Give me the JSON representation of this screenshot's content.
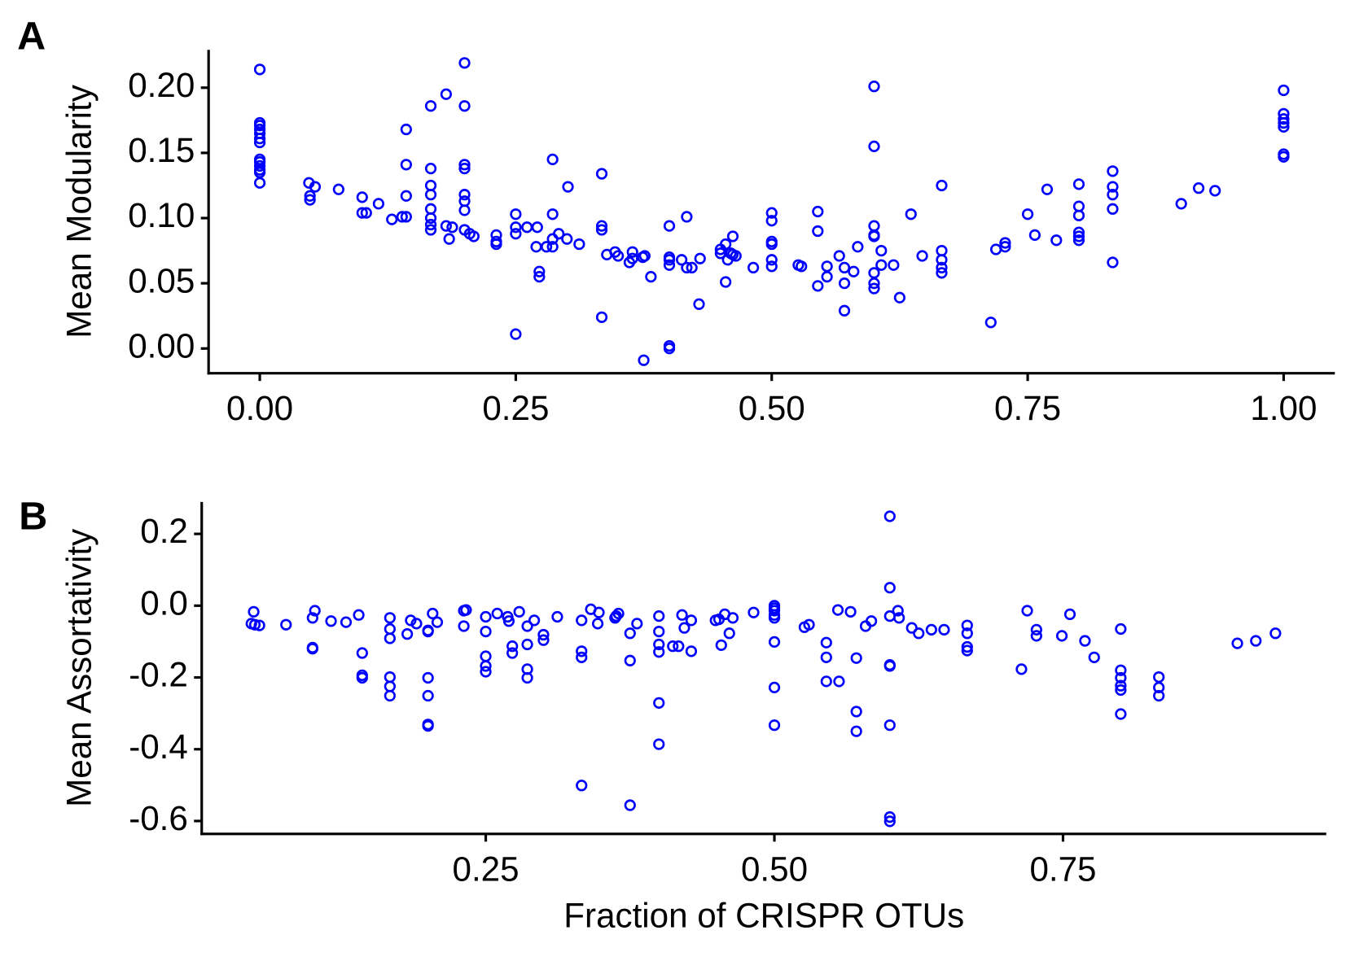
{
  "chart_data": [
    {
      "type": "scatter",
      "panel_label": "A",
      "y_label": "Mean Modularity",
      "xlim": [
        -0.05,
        1.05
      ],
      "ylim": [
        -0.019,
        0.229
      ],
      "xticks": [
        {
          "value": 0,
          "label": "0.00"
        },
        0.25,
        {
          "value": 0.5,
          "label": "0.50"
        },
        0.75,
        {
          "value": 1,
          "label": "1.00"
        }
      ],
      "yticks": [
        {
          "value": 0,
          "label": "0.00"
        },
        {
          "value": 0.05,
          "label": "0.05"
        },
        {
          "value": 0.1,
          "label": "0.10"
        },
        {
          "value": 0.15,
          "label": "0.15"
        },
        {
          "value": 0.2,
          "label": "0.20"
        }
      ],
      "series": [
        {
          "color": "#0000ff",
          "x": [
            0,
            0,
            0,
            0,
            0,
            0,
            0,
            0,
            0,
            0,
            0,
            0,
            0,
            0.048,
            0.049,
            0.049,
            0.054,
            0.077,
            0.1,
            0.1,
            0.104,
            0.116,
            0.129,
            0.139,
            0.143,
            0.143,
            0.143,
            0.143,
            0.167,
            0.167,
            0.167,
            0.167,
            0.167,
            0.167,
            0.167,
            0.167,
            0.182,
            0.182,
            0.185,
            0.188,
            0.2,
            0.2,
            0.2,
            0.2,
            0.2,
            0.2,
            0.2,
            0.2,
            0.205,
            0.209,
            0.231,
            0.231,
            0.231,
            0.25,
            0.25,
            0.25,
            0.25,
            0.261,
            0.271,
            0.27,
            0.273,
            0.273,
            0.28,
            0.286,
            0.286,
            0.286,
            0.286,
            0.292,
            0.3,
            0.301,
            0.312,
            0.334,
            0.334,
            0.334,
            0.334,
            0.339,
            0.347,
            0.35,
            0.361,
            0.364,
            0.364,
            0.374,
            0.376,
            0.375,
            0.382,
            0.4,
            0.4,
            0.4,
            0.4,
            0.4,
            0.4,
            0.412,
            0.417,
            0.417,
            0.422,
            0.43,
            0.429,
            0.45,
            0.45,
            0.455,
            0.455,
            0.457,
            0.46,
            0.462,
            0.462,
            0.465,
            0.482,
            0.5,
            0.5,
            0.5,
            0.5,
            0.5,
            0.5,
            0.526,
            0.529,
            0.545,
            0.545,
            0.545,
            0.554,
            0.554,
            0.566,
            0.571,
            0.571,
            0.571,
            0.58,
            0.584,
            0.6,
            0.6,
            0.6,
            0.6,
            0.6,
            0.6,
            0.6,
            0.6,
            0.607,
            0.607,
            0.619,
            0.625,
            0.636,
            0.647,
            0.666,
            0.666,
            0.666,
            0.666,
            0.666,
            0.714,
            0.719,
            0.728,
            0.728,
            0.75,
            0.757,
            0.769,
            0.778,
            0.8,
            0.8,
            0.8,
            0.8,
            0.8,
            0.8,
            0.833,
            0.833,
            0.833,
            0.833,
            0.833,
            0.9,
            0.917,
            0.933,
            1,
            1,
            1,
            1,
            1,
            1,
            1
          ],
          "values": [
            0.214,
            0.173,
            0.171,
            0.168,
            0.165,
            0.161,
            0.158,
            0.145,
            0.143,
            0.14,
            0.137,
            0.135,
            0.127,
            0.127,
            0.117,
            0.114,
            0.124,
            0.122,
            0.116,
            0.104,
            0.104,
            0.111,
            0.099,
            0.101,
            0.101,
            0.168,
            0.141,
            0.117,
            0.138,
            0.125,
            0.118,
            0.107,
            0.1,
            0.095,
            0.091,
            0.186,
            0.195,
            0.094,
            0.084,
            0.093,
            0.219,
            0.186,
            0.141,
            0.138,
            0.118,
            0.113,
            0.106,
            0.091,
            0.088,
            0.086,
            0.087,
            0.082,
            0.08,
            0.103,
            0.093,
            0.088,
            0.011,
            0.093,
            0.093,
            0.078,
            0.059,
            0.055,
            0.078,
            0.084,
            0.078,
            0.145,
            0.103,
            0.088,
            0.084,
            0.124,
            0.08,
            0.134,
            0.094,
            0.091,
            0.024,
            0.072,
            0.074,
            0.071,
            0.066,
            0.074,
            0.069,
            0.07,
            0.071,
            -0.009,
            0.055,
            0.094,
            0.07,
            0.068,
            0.064,
            0.002,
            0,
            0.068,
            0.101,
            0.062,
            0.062,
            0.069,
            0.034,
            0.076,
            0.073,
            0.08,
            0.051,
            0.068,
            0.073,
            0.072,
            0.086,
            0.071,
            0.062,
            0.104,
            0.098,
            0.082,
            0.08,
            0.068,
            0.063,
            0.064,
            0.063,
            0.105,
            0.09,
            0.048,
            0.063,
            0.055,
            0.071,
            0.062,
            0.05,
            0.029,
            0.059,
            0.078,
            0.201,
            0.155,
            0.094,
            0.087,
            0.086,
            0.058,
            0.05,
            0.046,
            0.075,
            0.064,
            0.064,
            0.039,
            0.103,
            0.071,
            0.125,
            0.075,
            0.068,
            0.062,
            0.058,
            0.02,
            0.076,
            0.081,
            0.078,
            0.103,
            0.087,
            0.122,
            0.083,
            0.126,
            0.109,
            0.102,
            0.089,
            0.086,
            0.083,
            0.136,
            0.124,
            0.118,
            0.107,
            0.066,
            0.111,
            0.123,
            0.121,
            0.198,
            0.18,
            0.176,
            0.173,
            0.17,
            0.149,
            0.147
          ]
        }
      ]
    },
    {
      "type": "scatter",
      "panel_label": "B",
      "y_label": "Mean Assortativity",
      "x_label": "Fraction of CRISPR OTUs",
      "xlim": [
        0.004,
        0.978
      ],
      "ylim": [
        -0.636,
        0.289
      ],
      "xticks": [
        0.25,
        {
          "value": 0.5,
          "label": "0.50"
        },
        0.75
      ],
      "yticks": [
        -0.6,
        -0.4,
        -0.2,
        {
          "value": 0,
          "label": "0.0"
        },
        0.2
      ],
      "series": [
        {
          "color": "#0000ff",
          "x": [
            0.049,
            0.047,
            0.05,
            0.054,
            0.077,
            0.1,
            0.102,
            0.1,
            0.1,
            0.116,
            0.129,
            0.14,
            0.143,
            0.143,
            0.143,
            0.167,
            0.167,
            0.167,
            0.167,
            0.167,
            0.167,
            0.182,
            0.185,
            0.19,
            0.2,
            0.2,
            0.2,
            0.2,
            0.2,
            0.2,
            0.204,
            0.208,
            0.231,
            0.233,
            0.231,
            0.25,
            0.25,
            0.25,
            0.25,
            0.25,
            0.26,
            0.269,
            0.27,
            0.273,
            0.273,
            0.279,
            0.286,
            0.286,
            0.286,
            0.286,
            0.292,
            0.3,
            0.3,
            0.312,
            0.333,
            0.333,
            0.333,
            0.333,
            0.341,
            0.348,
            0.347,
            0.362,
            0.363,
            0.365,
            0.375,
            0.375,
            0.375,
            0.381,
            0.4,
            0.4,
            0.4,
            0.4,
            0.4,
            0.4,
            0.412,
            0.417,
            0.42,
            0.422,
            0.428,
            0.428,
            0.449,
            0.452,
            0.454,
            0.457,
            0.461,
            0.464,
            0.482,
            0.5,
            0.5,
            0.5,
            0.5,
            0.5,
            0.5,
            0.5,
            0.5,
            0.526,
            0.53,
            0.545,
            0.545,
            0.545,
            0.555,
            0.556,
            0.566,
            0.571,
            0.571,
            0.571,
            0.579,
            0.584,
            0.6,
            0.6,
            0.6,
            0.6,
            0.6,
            0.6,
            0.6,
            0.6,
            0.607,
            0.608,
            0.619,
            0.625,
            0.636,
            0.647,
            0.667,
            0.667,
            0.667,
            0.667,
            0.714,
            0.719,
            0.727,
            0.727,
            0.749,
            0.756,
            0.769,
            0.777,
            0.8,
            0.8,
            0.8,
            0.8,
            0.8,
            0.8,
            0.833,
            0.833,
            0.833,
            0.901,
            0.917,
            0.934
          ],
          "values": [
            -0.017,
            -0.05,
            -0.053,
            -0.055,
            -0.053,
            -0.034,
            -0.014,
            -0.117,
            -0.12,
            -0.043,
            -0.046,
            -0.026,
            -0.132,
            -0.194,
            -0.201,
            -0.034,
            -0.065,
            -0.091,
            -0.199,
            -0.225,
            -0.251,
            -0.079,
            -0.041,
            -0.05,
            -0.069,
            -0.072,
            -0.201,
            -0.251,
            -0.331,
            -0.335,
            -0.022,
            -0.046,
            -0.014,
            -0.012,
            -0.057,
            -0.031,
            -0.072,
            -0.141,
            -0.168,
            -0.184,
            -0.022,
            -0.031,
            -0.043,
            -0.113,
            -0.132,
            -0.017,
            -0.057,
            -0.108,
            -0.177,
            -0.201,
            -0.041,
            -0.081,
            -0.096,
            -0.031,
            -0.041,
            -0.127,
            -0.144,
            -0.501,
            -0.01,
            -0.019,
            -0.05,
            -0.034,
            -0.029,
            -0.022,
            -0.077,
            -0.153,
            -0.556,
            -0.05,
            -0.029,
            -0.072,
            -0.108,
            -0.129,
            -0.271,
            -0.386,
            -0.113,
            -0.113,
            -0.026,
            -0.062,
            -0.041,
            -0.127,
            -0.041,
            -0.038,
            -0.11,
            -0.024,
            -0.077,
            -0.034,
            -0.019,
            0,
            -0.007,
            -0.014,
            -0.026,
            -0.034,
            -0.101,
            -0.228,
            -0.333,
            -0.06,
            -0.053,
            -0.103,
            -0.144,
            -0.211,
            -0.012,
            -0.211,
            -0.017,
            -0.146,
            -0.295,
            -0.35,
            -0.057,
            -0.043,
            0.249,
            0.05,
            -0.029,
            -0.165,
            -0.168,
            -0.333,
            -0.589,
            -0.601,
            -0.014,
            -0.034,
            -0.062,
            -0.077,
            -0.067,
            -0.067,
            -0.055,
            -0.077,
            -0.115,
            -0.125,
            -0.177,
            -0.014,
            -0.067,
            -0.084,
            -0.084,
            -0.024,
            -0.098,
            -0.144,
            -0.065,
            -0.18,
            -0.201,
            -0.223,
            -0.235,
            -0.302,
            -0.199,
            -0.228,
            -0.251,
            -0.105,
            -0.098,
            -0.077
          ]
        }
      ]
    }
  ]
}
